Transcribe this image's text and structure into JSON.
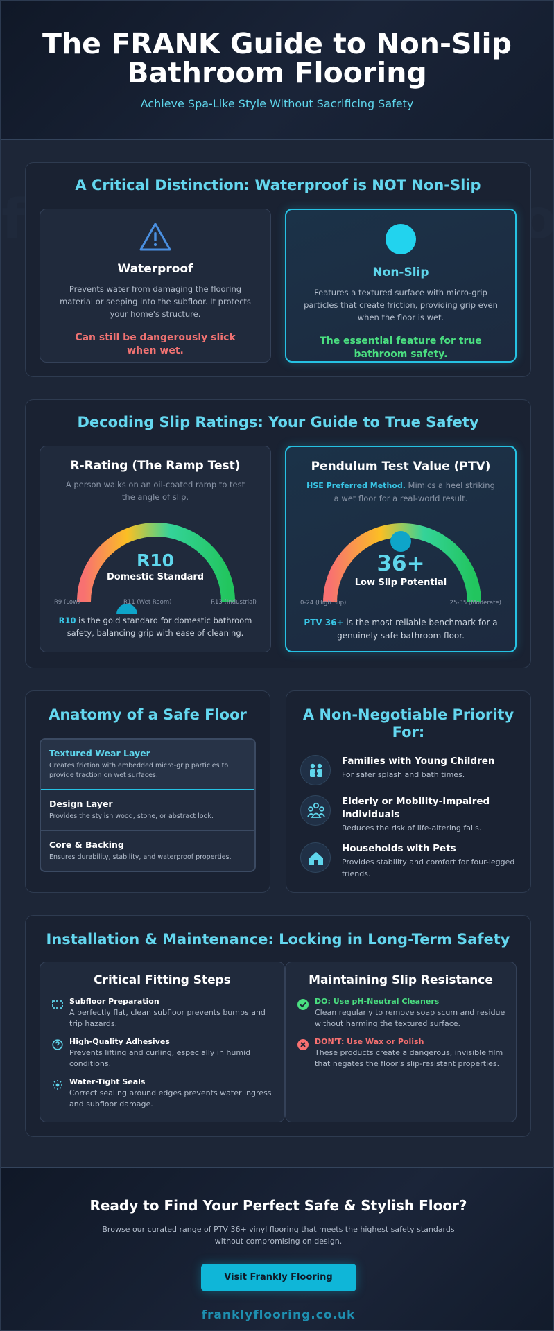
{
  "header": {
    "title": "The FRANK Guide to Non-Slip Bathroom Flooring",
    "subtitle": "Achieve Spa-Like Style Without Sacrificing Safety"
  },
  "watermark": "franklyflooring.co.uk",
  "distinction": {
    "title": "A Critical Distinction: Waterproof is NOT Non-Slip",
    "waterproof": {
      "icon": "warning-triangle-icon",
      "heading": "Waterproof",
      "description": "Prevents water from damaging the flooring material or seeping into the subfloor. It protects your home's structure.",
      "note": "Can still be dangerously slick when wet."
    },
    "nonslip": {
      "icon": "circle-icon",
      "heading": "Non-Slip",
      "description": "Features a textured surface with micro-grip particles that create friction, providing grip even when the floor is wet.",
      "note": "The essential feature for true bathroom safety."
    }
  },
  "ratings": {
    "title": "Decoding Slip Ratings: Your Guide to True Safety",
    "r_rating": {
      "heading": "R-Rating (The Ramp Test)",
      "description": "A person walks on an oil-coated ramp to test the angle of slip.",
      "value": "R10",
      "value_label": "Domestic Standard",
      "scale_low": "R9 (Low)",
      "scale_mid": "R11 (Wet Room)",
      "scale_high": "R13 (Industrial)",
      "footer_highlight": "R10",
      "footer_text": " is the gold standard for domestic bathroom safety, balancing grip with ease of cleaning."
    },
    "ptv": {
      "heading": "Pendulum Test Value (PTV)",
      "method_highlight": "HSE Preferred Method.",
      "description": " Mimics a heel striking a wet floor for a real-world result.",
      "value": "36+",
      "value_label": "Low Slip Potential",
      "scale_low": "0-24 (High Slip)",
      "scale_high": "25-35 (Moderate)",
      "footer_highlight": "PTV 36+",
      "footer_text": " is the most reliable benchmark for a genuinely safe bathroom floor."
    },
    "colors": {
      "red": "#f87171",
      "orange": "#fb923c",
      "yellow": "#facc15",
      "green": "#22c55e",
      "accent": "#06b6d4"
    }
  },
  "anatomy": {
    "title": "Anatomy of a Safe Floor",
    "layers": [
      {
        "name": "Textured Wear Layer",
        "desc": "Creates friction with embedded micro-grip particles to provide traction on wet surfaces."
      },
      {
        "name": "Design Layer",
        "desc": "Provides the stylish wood, stone, or abstract look."
      },
      {
        "name": "Core & Backing",
        "desc": "Ensures durability, stability, and waterproof properties."
      }
    ]
  },
  "priority": {
    "title": "A Non-Negotiable Priority For:",
    "items": [
      {
        "icon": "family-icon",
        "title": "Families with Young Children",
        "desc": "For safer splash and bath times."
      },
      {
        "icon": "people-group-icon",
        "title": "Elderly or Mobility-Impaired Individuals",
        "desc": "Reduces the risk of life-altering falls."
      },
      {
        "icon": "home-icon",
        "title": "Households with Pets",
        "desc": "Provides stability and comfort for four-legged friends."
      }
    ]
  },
  "installation": {
    "title": "Installation & Maintenance: Locking in Long-Term Safety",
    "fitting": {
      "heading": "Critical Fitting Steps",
      "steps": [
        {
          "icon": "subfloor-icon",
          "title": "Subfloor Preparation",
          "desc": "A perfectly flat, clean subfloor prevents bumps and trip hazards."
        },
        {
          "icon": "question-circle-icon",
          "title": "High-Quality Adhesives",
          "desc": "Prevents lifting and curling, especially in humid conditions."
        },
        {
          "icon": "seal-icon",
          "title": "Water-Tight Seals",
          "desc": "Correct sealing around edges prevents water ingress and subfloor damage."
        }
      ]
    },
    "maintenance": {
      "heading": "Maintaining Slip Resistance",
      "items": [
        {
          "icon": "check-circle-icon",
          "title": "DO: Use pH-Neutral Cleaners",
          "desc": "Clean regularly to remove soap scum and residue without harming the textured surface."
        },
        {
          "icon": "x-circle-icon",
          "title": "DON'T: Use Wax or Polish",
          "desc": "These products create a dangerous, invisible film that negates the floor's slip-resistant properties."
        }
      ]
    }
  },
  "cta": {
    "title": "Ready to Find Your Perfect Safe & Stylish Floor?",
    "text": "Browse our curated range of PTV 36+ vinyl flooring that meets the highest safety standards without compromising on design.",
    "button": "Visit Frankly Flooring",
    "domain": "franklyflooring.co.uk"
  }
}
